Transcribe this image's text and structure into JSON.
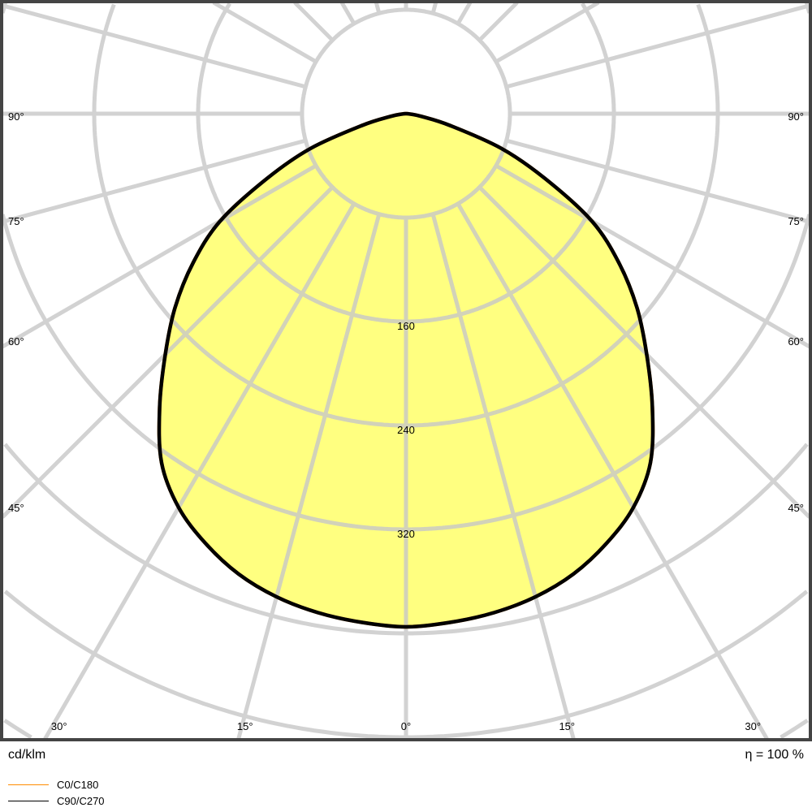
{
  "chart_data": {
    "type": "polar",
    "unit_label": "cd/klm",
    "efficiency_label": "η = 100 %",
    "radial_ticks": [
      80,
      160,
      240,
      320,
      400,
      480,
      560,
      640
    ],
    "radial_tick_labels": [
      "160",
      "240",
      "320"
    ],
    "angle_labels_side": [
      {
        "angle": 90,
        "label": "90°"
      },
      {
        "angle": 75,
        "label": "75°"
      },
      {
        "angle": 60,
        "label": "60°"
      },
      {
        "angle": 45,
        "label": "45°"
      }
    ],
    "angle_labels_bottom": [
      {
        "angle": -30,
        "label": "30°"
      },
      {
        "angle": -15,
        "label": "15°"
      },
      {
        "angle": 0,
        "label": "0°"
      },
      {
        "angle": 15,
        "label": "15°"
      },
      {
        "angle": 30,
        "label": "30°"
      }
    ],
    "angle_step": 15,
    "angles": [
      0,
      5,
      10,
      15,
      20,
      25,
      30,
      35,
      40,
      45,
      50,
      55,
      60,
      65,
      70,
      75,
      80,
      85,
      90
    ],
    "series": [
      {
        "name": "C0/C180",
        "color": "#ff8c00",
        "values": [
          395,
          393,
          390,
          385,
          377,
          365,
          350,
          328,
          295,
          262,
          232,
          200,
          165,
          118,
          78,
          35,
          12,
          3,
          0
        ]
      },
      {
        "name": "C90/C270",
        "color": "#000000",
        "values": [
          395,
          393,
          390,
          385,
          377,
          365,
          350,
          328,
          295,
          262,
          232,
          200,
          165,
          118,
          78,
          35,
          12,
          3,
          0
        ]
      }
    ],
    "fill_color": "#ffff80",
    "grid_color": "#c8c8c8",
    "grid": true,
    "legend_placement": "bottom-left"
  }
}
